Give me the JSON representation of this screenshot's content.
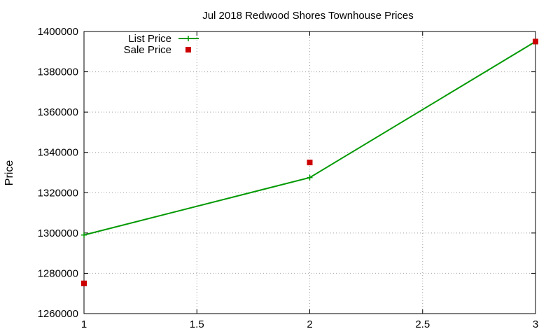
{
  "chart_data": {
    "type": "line",
    "title": "Jul 2018 Redwood Shores Townhouse Prices",
    "xlabel": "",
    "ylabel": "Price",
    "xlim": [
      1,
      3
    ],
    "ylim": [
      1260000,
      1400000
    ],
    "x_ticks": [
      1,
      1.5,
      2,
      2.5,
      3
    ],
    "x_tick_labels": [
      "1",
      "1.5",
      "2",
      "2.5",
      "3"
    ],
    "y_ticks": [
      1260000,
      1280000,
      1300000,
      1320000,
      1340000,
      1360000,
      1380000,
      1400000
    ],
    "y_tick_labels": [
      "1260000",
      "1280000",
      "1300000",
      "1320000",
      "1340000",
      "1360000",
      "1380000",
      "1400000"
    ],
    "grid": true,
    "legend_position": "top-left",
    "series": [
      {
        "name": "List Price",
        "style": "line-with-plus-markers",
        "color": "#009900",
        "x": [
          1,
          2,
          3
        ],
        "values": [
          1299000,
          1327500,
          1395000
        ]
      },
      {
        "name": "Sale Price",
        "style": "square-markers",
        "color": "#cc0000",
        "x": [
          1,
          2,
          3
        ],
        "values": [
          1275000,
          1335000,
          1395000
        ]
      }
    ]
  }
}
